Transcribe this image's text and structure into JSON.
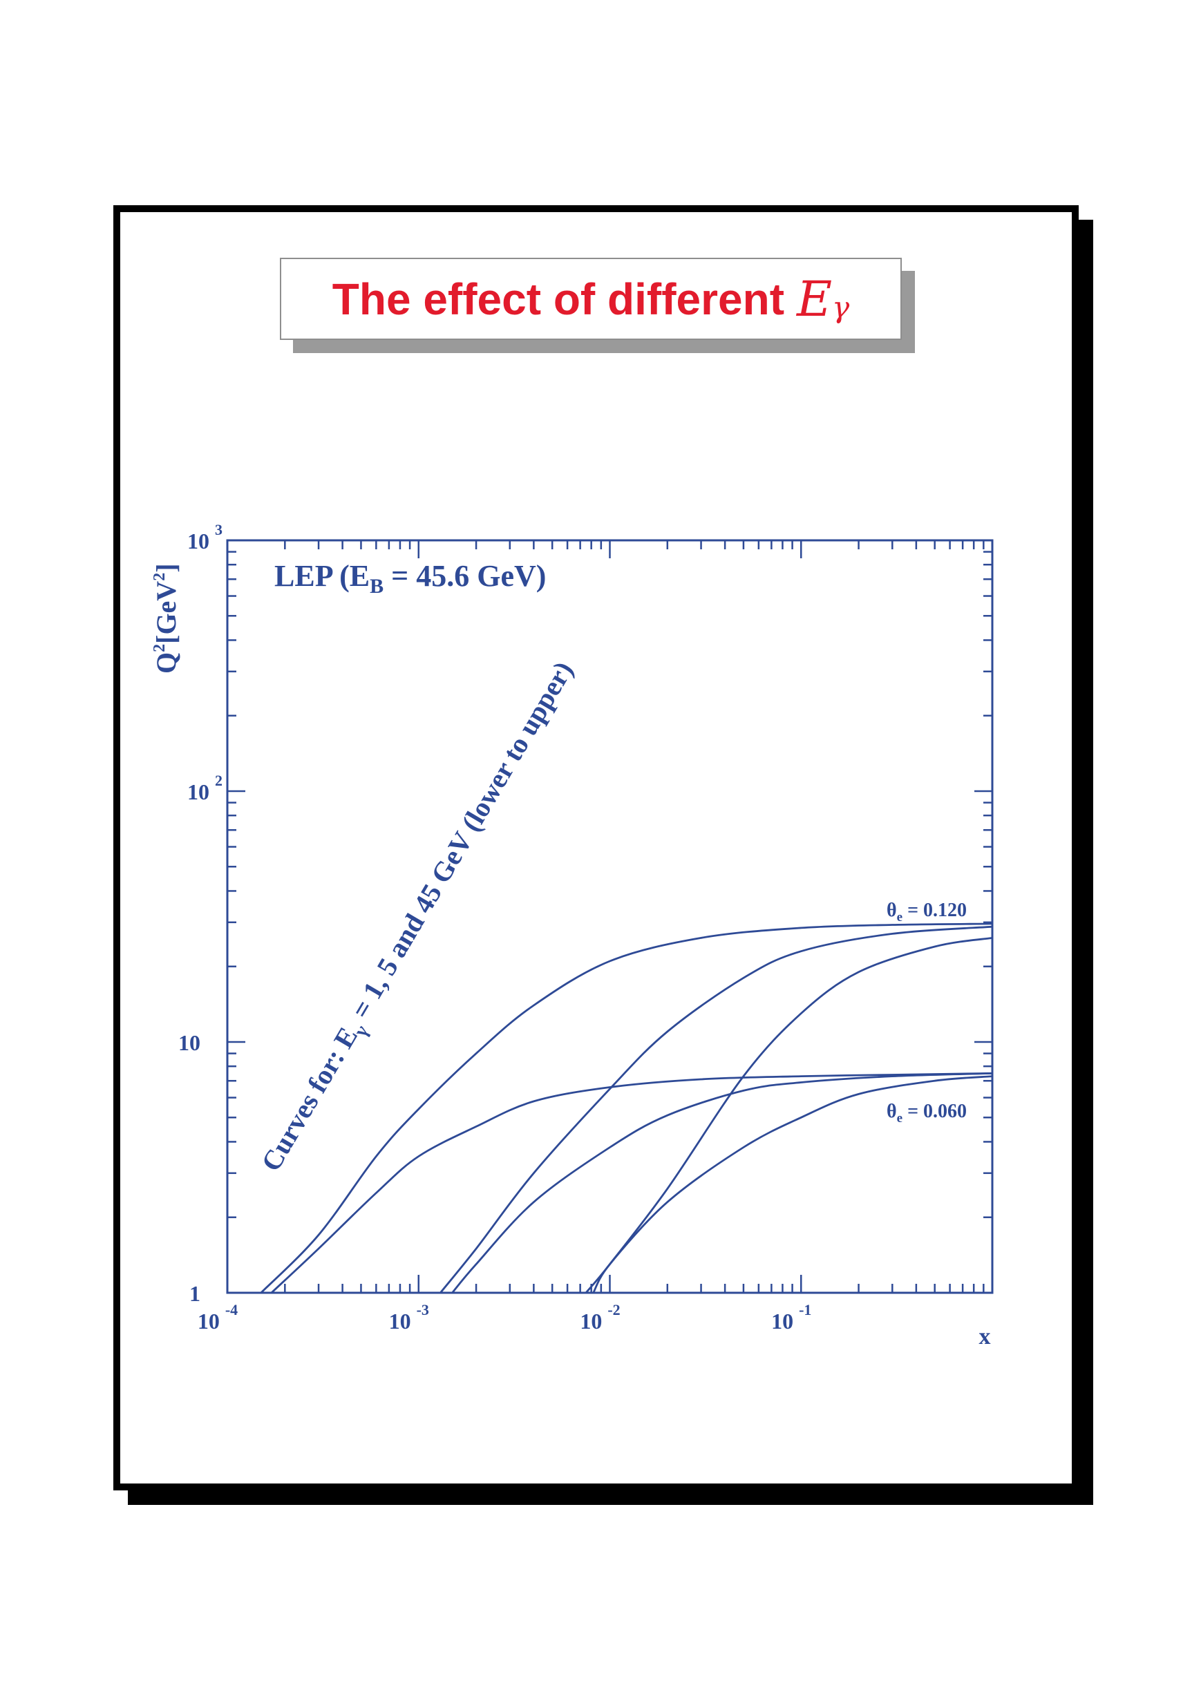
{
  "page": {
    "title": "The effect of different",
    "title_symbol": "E",
    "title_symbol_sub": "γ"
  },
  "chart_data": {
    "type": "line",
    "scale": {
      "x": "log",
      "y": "log"
    },
    "xlim": [
      0.0001,
      1
    ],
    "ylim": [
      1,
      1000
    ],
    "xlabel": "x",
    "ylabel": "Q",
    "ylabel_sup": "2",
    "ylabel_unit": "[GeV",
    "ylabel_unit_sup": "2",
    "ylabel_unit_close": "]",
    "x_tick_labels": [
      {
        "value": 0.0001,
        "base": "10",
        "exp": "-4"
      },
      {
        "value": 0.001,
        "base": "10",
        "exp": "-3"
      },
      {
        "value": 0.01,
        "base": "10",
        "exp": "-2"
      },
      {
        "value": 0.1,
        "base": "10",
        "exp": "-1"
      }
    ],
    "y_tick_labels": [
      {
        "value": 1,
        "base": "1",
        "exp": ""
      },
      {
        "value": 10,
        "base": "10",
        "exp": ""
      },
      {
        "value": 100,
        "base": "10",
        "exp": "2"
      },
      {
        "value": 1000,
        "base": "10",
        "exp": "3"
      }
    ],
    "annotations": {
      "beam": {
        "pre": "LEP (E",
        "sub": "B",
        "post": " = 45.6 GeV)"
      },
      "curves_note": {
        "pre": "Curves for: E",
        "sub": "γ",
        "post": " = 1, 5 and 45 GeV (lower to upper)"
      },
      "theta_high": {
        "pre": "θ",
        "sub": "e",
        "post": " = 0.120"
      },
      "theta_low": {
        "pre": "θ",
        "sub": "e",
        "post": " = 0.060"
      }
    },
    "series": [
      {
        "x": [
          0.00017,
          0.0003,
          0.0006,
          0.001,
          0.002,
          0.004,
          0.01,
          0.03,
          0.1,
          0.3,
          1.0
        ],
        "y": [
          1.0,
          1.5,
          2.5,
          3.5,
          4.6,
          5.8,
          6.6,
          7.1,
          7.3,
          7.4,
          7.5
        ]
      },
      {
        "x": [
          0.0015,
          0.002,
          0.004,
          0.01,
          0.02,
          0.05,
          0.1,
          0.3,
          1.0
        ],
        "y": [
          1.0,
          1.3,
          2.3,
          3.8,
          5.1,
          6.4,
          6.9,
          7.3,
          7.5
        ]
      },
      {
        "x": [
          0.0082,
          0.01,
          0.02,
          0.05,
          0.1,
          0.2,
          0.5,
          1.0
        ],
        "y": [
          1.0,
          1.3,
          2.3,
          3.8,
          5.0,
          6.2,
          7.0,
          7.3
        ]
      },
      {
        "x": [
          0.00015,
          0.0003,
          0.0006,
          0.001,
          0.002,
          0.004,
          0.01,
          0.03,
          0.1,
          0.3,
          1.0
        ],
        "y": [
          1.0,
          1.7,
          3.5,
          5.4,
          9.0,
          14,
          21,
          26,
          28.5,
          29.3,
          29.6
        ]
      },
      {
        "x": [
          0.0013,
          0.002,
          0.004,
          0.01,
          0.02,
          0.05,
          0.1,
          0.3,
          1.0
        ],
        "y": [
          1.0,
          1.5,
          3.0,
          6.5,
          11,
          18,
          23,
          27,
          28.8
        ]
      },
      {
        "x": [
          0.0075,
          0.01,
          0.02,
          0.05,
          0.1,
          0.2,
          0.5,
          1.0
        ],
        "y": [
          1.0,
          1.3,
          2.6,
          7.3,
          13,
          19,
          24,
          26
        ]
      }
    ],
    "colors": {
      "ink": "#2e4a96"
    }
  }
}
